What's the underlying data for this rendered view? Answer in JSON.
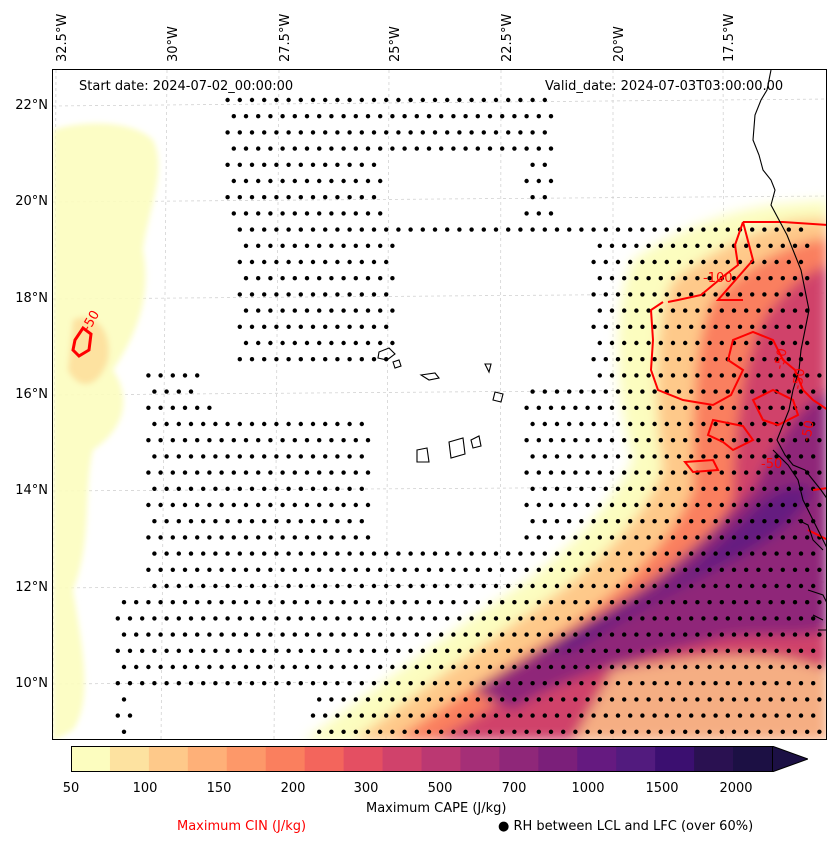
{
  "header": {
    "start_date": "Start date: 2024-07-02_00:00:00",
    "valid_date": "Valid_date: 2024-07-03T03:00:00.00"
  },
  "longitude_labels": [
    "32.5°W",
    "30°W",
    "27.5°W",
    "25°W",
    "22.5°W",
    "20°W",
    "17.5°W"
  ],
  "latitude_labels": [
    "22°N",
    "20°N",
    "18°N",
    "16°N",
    "14°N",
    "12°N",
    "10°N"
  ],
  "colorbar": {
    "ticks": [
      "50",
      "100",
      "150",
      "200",
      "300",
      "500",
      "700",
      "1000",
      "1500",
      "2000"
    ],
    "label": "Maximum CAPE (J/kg)",
    "colors": [
      "#fcfdbf",
      "#fde2a0",
      "#fec98a",
      "#feb078",
      "#fd9869",
      "#fa7f5e",
      "#f3655c",
      "#e44f62",
      "#d0426b",
      "#bb3872",
      "#a52f77",
      "#8f2779",
      "#7b1f7a",
      "#651a80",
      "#521b7e",
      "#3b0f70",
      "#2a1151",
      "#1c1044"
    ]
  },
  "legend": {
    "cin_label": "Maximum CIN (J/kg)",
    "rh_label": "● RH between LCL and LFC (over 60%)"
  },
  "contour_labels": [
    "-100",
    "-50",
    "-50",
    "-50",
    "-50",
    "-50"
  ],
  "colors": {
    "cin_contour": "#ff0000",
    "coastline": "#000000",
    "gridline": "#cccccc"
  }
}
